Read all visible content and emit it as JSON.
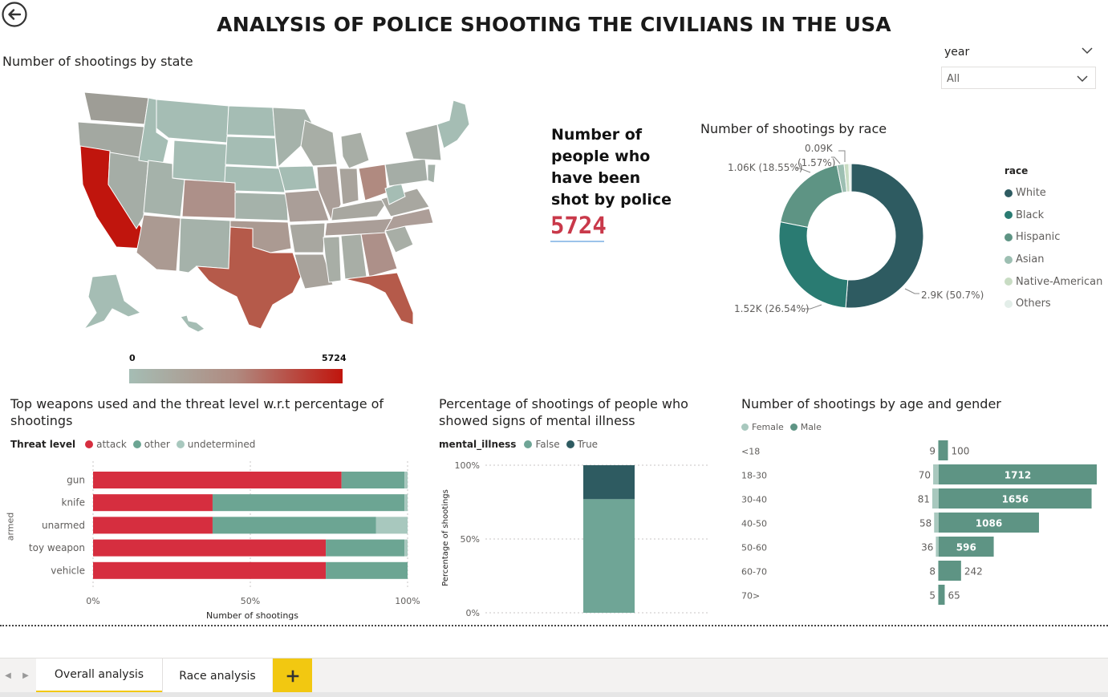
{
  "page_title": "ANALYSIS OF POLICE SHOOTING THE CIVILIANS IN THE USA",
  "map": {
    "title": "Number of shootings by state",
    "scale_min": "0",
    "scale_max": "5724",
    "color_low": "#a5bdb4",
    "color_high": "#c0150d"
  },
  "slicer": {
    "label": "year",
    "value": "All"
  },
  "kpi": {
    "label": "Number of people who have been shot by police",
    "value": "5724"
  },
  "race_chart": {
    "title": "Number of shootings by race",
    "legend_title": "race",
    "labels": {
      "white": "2.9K (50.7%)",
      "black": "1.52K (26.54%)",
      "hispanic": "1.06K (18.55%)",
      "asian_line1": "0.09K",
      "asian_line2": "(1.57%)"
    }
  },
  "weapons_chart": {
    "title": "Top weapons used and the threat level w.r.t percentage of shootings",
    "legend_title": "Threat level",
    "xlabel": "Number of shootings",
    "ylabel": "armed",
    "ticks": [
      "0%",
      "50%",
      "100%"
    ]
  },
  "mental_chart": {
    "title": "Percentage of shootings of people who showed signs of mental illness",
    "legend_title": "mental_illness",
    "ylabel": "Percentage of shootings",
    "ticks": [
      "100%",
      "50%",
      "0%"
    ]
  },
  "age_chart": {
    "title": "Number of shootings by age and gender",
    "legend": [
      "Female",
      "Male"
    ]
  },
  "chart_data": [
    {
      "type": "pie",
      "title": "Number of shootings by race",
      "categories": [
        "White",
        "Black",
        "Hispanic",
        "Asian",
        "Native-American",
        "Others"
      ],
      "values": [
        2900,
        1520,
        1060,
        90,
        60,
        30
      ],
      "colors": [
        "#2e5b61",
        "#2a7b72",
        "#5e9484",
        "#9dbfb2",
        "#c8dcc3",
        "#e3eee9"
      ]
    },
    {
      "type": "bar",
      "title": "Top weapons used and the threat level w.r.t percentage of shootings",
      "categories": [
        "gun",
        "knife",
        "unarmed",
        "toy weapon",
        "vehicle"
      ],
      "series": [
        {
          "name": "attack",
          "values": [
            79,
            38,
            38,
            74,
            74
          ]
        },
        {
          "name": "other",
          "values": [
            20,
            61,
            52,
            25,
            26
          ]
        },
        {
          "name": "undetermined",
          "values": [
            1,
            1,
            10,
            1,
            0
          ]
        }
      ],
      "colors": [
        "#d62e3f",
        "#6ca593",
        "#a8c8be"
      ],
      "xlabel": "Number of shootings",
      "ylabel": "armed",
      "xlim": [
        0,
        100
      ]
    },
    {
      "type": "bar",
      "title": "Percentage of shootings of people who showed signs of mental illness",
      "categories": [
        ""
      ],
      "series": [
        {
          "name": "False",
          "values": [
            77
          ]
        },
        {
          "name": "True",
          "values": [
            23
          ]
        }
      ],
      "colors": [
        "#6fa596",
        "#2e5b61"
      ],
      "ylabel": "Percentage of shootings",
      "ylim": [
        0,
        100
      ]
    },
    {
      "type": "bar",
      "title": "Number of shootings by age and gender",
      "categories": [
        "<18",
        "18-30",
        "30-40",
        "40-50",
        "50-60",
        "60-70",
        "70>"
      ],
      "series": [
        {
          "name": "Female",
          "values": [
            9,
            70,
            81,
            58,
            36,
            8,
            5
          ]
        },
        {
          "name": "Male",
          "values": [
            100,
            1712,
            1656,
            1086,
            596,
            242,
            65
          ]
        }
      ],
      "colors": [
        "#a8c8be",
        "#5e9484"
      ]
    }
  ],
  "weapons_legend": [
    "attack",
    "other",
    "undetermined"
  ],
  "mental_legend": [
    "False",
    "True"
  ],
  "race_legend": [
    "White",
    "Black",
    "Hispanic",
    "Asian",
    "Native-American",
    "Others"
  ],
  "tabs": [
    "Overall analysis",
    "Race analysis"
  ],
  "add_tab_icon": "plus-icon",
  "back_icon": "back-arrow-icon"
}
